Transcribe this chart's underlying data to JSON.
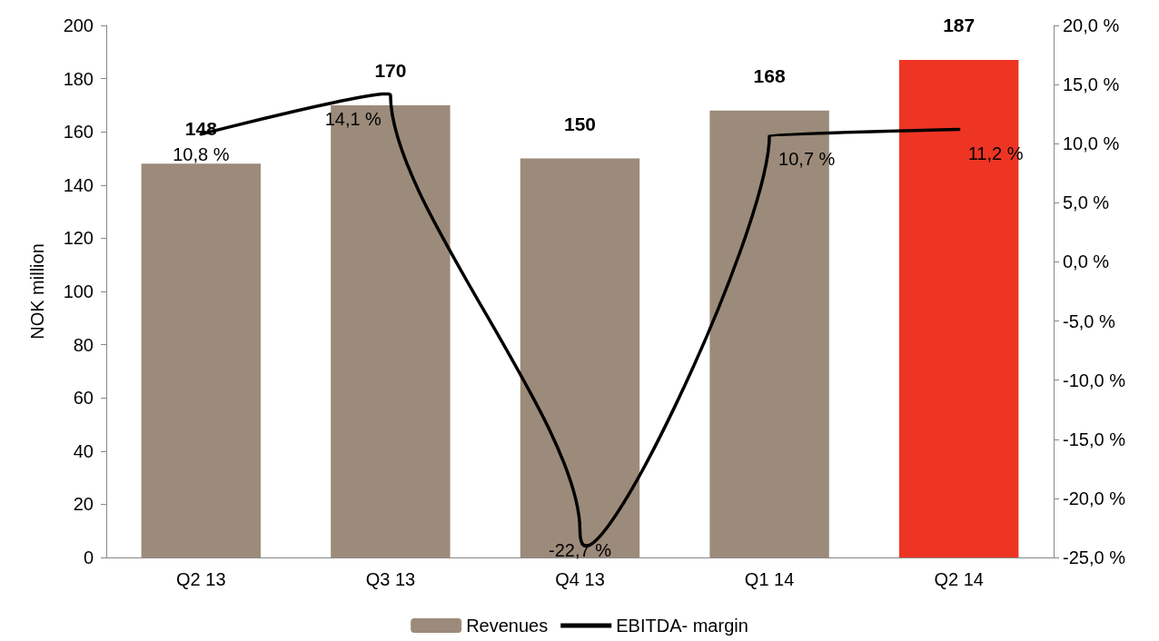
{
  "chart_data": {
    "type": "bar",
    "ylabel": "NOK million",
    "categories": [
      "Q2 13",
      "Q3 13",
      "Q4 13",
      "Q1 14",
      "Q2 14"
    ],
    "series": [
      {
        "name": "Revenues",
        "color": "#9c8b7a",
        "colors": [
          "#9c8b7a",
          "#9c8b7a",
          "#9c8b7a",
          "#9c8b7a",
          "#ee3524"
        ],
        "values": [
          148,
          170,
          150,
          168,
          187
        ],
        "value_labels": [
          "148",
          "170",
          "150",
          "168",
          "187"
        ]
      },
      {
        "name": "EBITDA- margin",
        "type": "line",
        "axis": "y2",
        "color": "#000000",
        "values": [
          10.8,
          14.1,
          -22.7,
          10.7,
          11.2
        ],
        "value_labels": [
          "10,8 %",
          "14,1 %",
          "-22,7 %",
          "10,7 %",
          "11,2 %"
        ]
      }
    ],
    "ylim": [
      0,
      200
    ],
    "yticks": [
      0,
      20,
      40,
      60,
      80,
      100,
      120,
      140,
      160,
      180,
      200
    ],
    "y2lim": [
      -25,
      20
    ],
    "y2ticks": [
      {
        "value": -25,
        "label": "-25,0 %"
      },
      {
        "value": -20,
        "label": "-20,0 %"
      },
      {
        "value": -15,
        "label": "-15,0 %"
      },
      {
        "value": -10,
        "label": "-10,0 %"
      },
      {
        "value": -5,
        "label": "-5,0 %"
      },
      {
        "value": 0,
        "label": "0,0 %"
      },
      {
        "value": 5,
        "label": "5,0 %"
      },
      {
        "value": 10,
        "label": "10,0 %"
      },
      {
        "value": 15,
        "label": "15,0 %"
      },
      {
        "value": 20,
        "label": "20,0 %"
      }
    ],
    "grid": false,
    "legend": "bottom",
    "marker": "none",
    "line_style": "solid"
  }
}
